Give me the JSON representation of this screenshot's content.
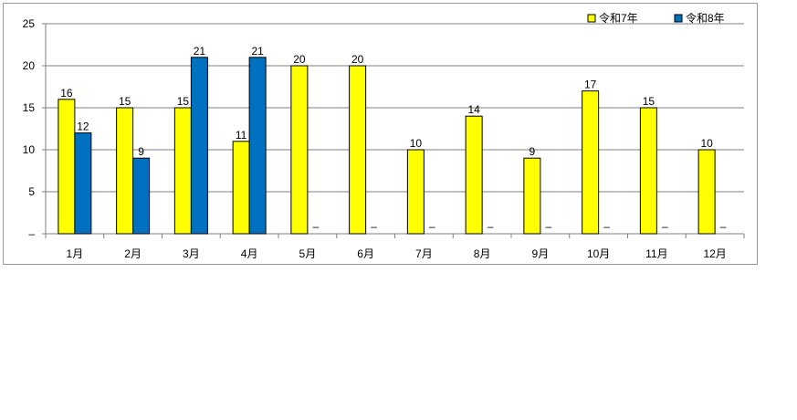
{
  "chart_data": {
    "type": "bar",
    "categories": [
      "1月",
      "2月",
      "3月",
      "4月",
      "5月",
      "6月",
      "7月",
      "8月",
      "9月",
      "10月",
      "11月",
      "12月"
    ],
    "series": [
      {
        "name": "令和7年",
        "color": "#FFFF00",
        "values": [
          16,
          15,
          15,
          11,
          20,
          20,
          10,
          14,
          9,
          17,
          15,
          10
        ]
      },
      {
        "name": "令和8年",
        "color": "#0070C0",
        "values": [
          12,
          9,
          21,
          21,
          null,
          null,
          null,
          null,
          null,
          null,
          null,
          null
        ]
      }
    ],
    "missing_label": "–",
    "y_ticks": [
      "–",
      "5",
      "10",
      "15",
      "20",
      "25"
    ],
    "ylim": [
      0,
      25
    ],
    "grid": true,
    "legend": "top-right",
    "title": "",
    "xlabel": "",
    "ylabel": ""
  }
}
